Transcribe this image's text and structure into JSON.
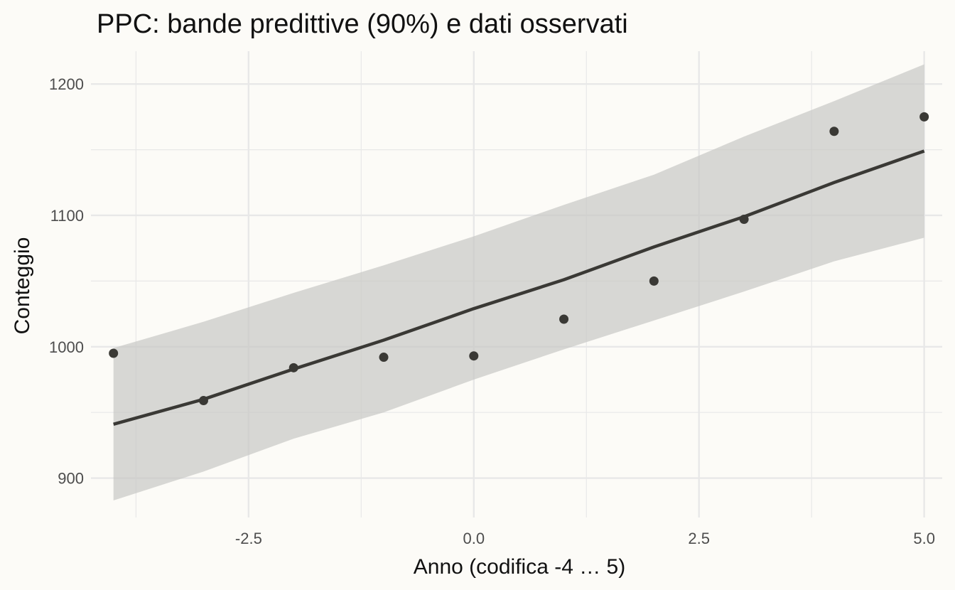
{
  "chart_data": {
    "type": "line",
    "title": "PPC: bande predittive (90%) e dati osservati",
    "xlabel": "Anno (codifica -4 … 5)",
    "ylabel": "Conteggio",
    "xlim": [
      -4.25,
      5.2
    ],
    "ylim": [
      870,
      1225
    ],
    "x_ticks": [
      -2.5,
      0.0,
      2.5,
      5.0
    ],
    "x_tick_labels": [
      "-2.5",
      "0.0",
      "2.5",
      "5.0"
    ],
    "x_minor_ticks": [
      -3.75,
      -1.25,
      1.25,
      3.75
    ],
    "y_ticks": [
      900,
      1000,
      1100,
      1200
    ],
    "y_tick_labels": [
      "900",
      "1000",
      "1100",
      "1200"
    ],
    "y_minor_ticks": [
      950,
      1050,
      1150
    ],
    "grid": true,
    "band": {
      "x": [
        -4,
        -3,
        -2,
        -1,
        0,
        1,
        2,
        3,
        4,
        5
      ],
      "lower": [
        883,
        905,
        930,
        950,
        975,
        998,
        1020,
        1042,
        1065,
        1083
      ],
      "upper": [
        999,
        1019,
        1041,
        1062,
        1084,
        1108,
        1131,
        1160,
        1187,
        1215
      ]
    },
    "series": [
      {
        "role": "predicted-mean",
        "x": [
          -4,
          -3,
          -2,
          -1,
          0,
          1,
          2,
          3,
          4,
          5
        ],
        "y": [
          941,
          960,
          983,
          1005,
          1029,
          1051,
          1076,
          1099,
          1125,
          1149
        ]
      },
      {
        "role": "observed",
        "x": [
          -4,
          -3,
          -2,
          -1,
          0,
          1,
          2,
          3,
          4,
          5
        ],
        "y": [
          995,
          959,
          984,
          992,
          993,
          1021,
          1050,
          1097,
          1164,
          1175
        ]
      }
    ],
    "colors": {
      "background": "#fcfbf7",
      "grid": "#e8e8e8",
      "band": "#c8c8c4",
      "line": "#3a3935",
      "points": "#3a3935"
    }
  }
}
